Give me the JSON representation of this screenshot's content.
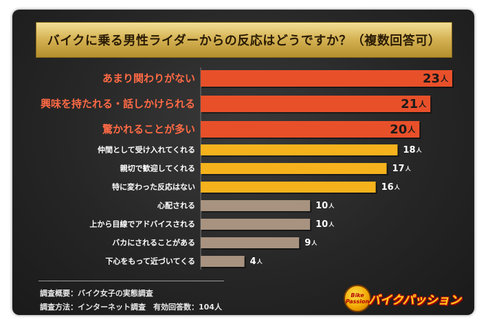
{
  "title": "バイクに乗る男性ライダーからの反応はどうですか？（複数回答可）",
  "unit": "人",
  "chart_data": {
    "type": "bar",
    "orientation": "horizontal",
    "title": "バイクに乗る男性ライダーからの反応はどうですか？（複数回答可）",
    "categories": [
      "あまり関わりがない",
      "興味を持たれる・話しかけられる",
      "驚かれることが多い",
      "仲間として受け入れてくれる",
      "親切で歓迎してくれる",
      "特に変わった反応はない",
      "心配される",
      "上から目線でアドバイスされる",
      "バカにされることがある",
      "下心をもって近づいてくる"
    ],
    "values": [
      23,
      21,
      20,
      18,
      17,
      16,
      10,
      10,
      9,
      4
    ],
    "value_unit": "人",
    "xlim": [
      0,
      23
    ],
    "colors": [
      "#e8502a",
      "#e8502a",
      "#e8502a",
      "#f5b21c",
      "#f5b21c",
      "#f5b21c",
      "#a89380",
      "#a89380",
      "#a89380",
      "#a89380"
    ],
    "label_colors": [
      "#ff6a45",
      "#ff6a45",
      "#ff6a45",
      "#ffffff",
      "#ffffff",
      "#ffffff",
      "#ffffff",
      "#ffffff",
      "#ffffff",
      "#ffffff"
    ],
    "grid": false,
    "legend": false
  },
  "footer": {
    "line1": "調査概要：バイク女子の実態調査",
    "line2": "調査方法：インターネット調査　有効回答数：104人"
  },
  "logo": {
    "badge_text": "Bike Passion",
    "brand": "バイクパッション"
  }
}
